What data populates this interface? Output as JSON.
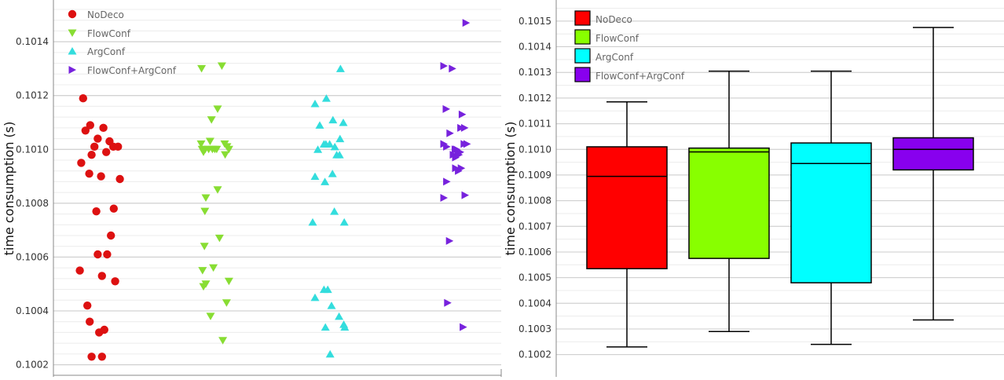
{
  "chart_data": [
    {
      "type": "scatter",
      "ylabel": "time consumption (s)",
      "ylim": [
        0.10019,
        0.10152
      ],
      "y_ticks": [
        "0.1002",
        "0.1004",
        "0.1006",
        "0.1008",
        "0.1010",
        "0.1012",
        "0.1014"
      ],
      "legend": [
        "NoDeco",
        "FlowConf",
        "ArgConf",
        "FlowConf+ArgConf"
      ],
      "series": [
        {
          "name": "NoDeco",
          "marker": "circle",
          "color": "#dd1111",
          "x_center": 0,
          "points": [
            [
              -0.07,
              0.10119
            ],
            [
              -0.02,
              0.10107
            ],
            [
              0.08,
              0.10109
            ],
            [
              0.36,
              0.10108
            ],
            [
              0.49,
              0.10103
            ],
            [
              0.57,
              0.10101
            ],
            [
              0.67,
              0.10101
            ],
            [
              0.24,
              0.10104
            ],
            [
              0.17,
              0.10101
            ],
            [
              0.11,
              0.10098
            ],
            [
              0.42,
              0.10099
            ],
            [
              -0.11,
              0.10095
            ],
            [
              0.06,
              0.10091
            ],
            [
              0.31,
              0.1009
            ],
            [
              0.71,
              0.10089
            ],
            [
              0.21,
              0.10077
            ],
            [
              0.58,
              0.10078
            ],
            [
              0.52,
              0.10068
            ],
            [
              0.24,
              0.10061
            ],
            [
              0.44,
              0.10061
            ],
            [
              0.33,
              0.10053
            ],
            [
              0.61,
              0.10051
            ],
            [
              -0.14,
              0.10055
            ],
            [
              0.02,
              0.10042
            ],
            [
              0.07,
              0.10036
            ],
            [
              0.27,
              0.10032
            ],
            [
              0.38,
              0.10033
            ],
            [
              0.11,
              0.10023
            ],
            [
              0.33,
              0.10023
            ]
          ]
        },
        {
          "name": "FlowConf",
          "marker": "triangle-down",
          "color": "#88dd33",
          "x_center": 1,
          "points": [
            [
              -0.14,
              0.1013
            ],
            [
              0.29,
              0.10131
            ],
            [
              0.2,
              0.10115
            ],
            [
              0.07,
              0.10111
            ],
            [
              -0.15,
              0.10102
            ],
            [
              0.04,
              0.10103
            ],
            [
              -0.13,
              0.101
            ],
            [
              -0.06,
              0.101
            ],
            [
              -0.1,
              0.10099
            ],
            [
              0.01,
              0.101
            ],
            [
              0.09,
              0.101
            ],
            [
              0.14,
              0.101
            ],
            [
              0.18,
              0.101
            ],
            [
              0.35,
              0.10102
            ],
            [
              0.4,
              0.10101
            ],
            [
              0.44,
              0.101
            ],
            [
              0.36,
              0.10098
            ],
            [
              0.2,
              0.10085
            ],
            [
              -0.05,
              0.10082
            ],
            [
              -0.07,
              0.10077
            ],
            [
              0.24,
              0.10067
            ],
            [
              -0.08,
              0.10064
            ],
            [
              0.11,
              0.10056
            ],
            [
              0.44,
              0.10051
            ],
            [
              -0.12,
              0.10055
            ],
            [
              -0.05,
              0.1005
            ],
            [
              -0.1,
              0.10049
            ],
            [
              0.39,
              0.10043
            ],
            [
              0.05,
              0.10038
            ],
            [
              0.31,
              0.10029
            ]
          ]
        },
        {
          "name": "ArgConf",
          "marker": "triangle-up",
          "color": "#33dddd",
          "x_center": 2,
          "points": [
            [
              0.39,
              0.1013
            ],
            [
              -0.15,
              0.10117
            ],
            [
              0.09,
              0.10119
            ],
            [
              -0.05,
              0.10109
            ],
            [
              0.23,
              0.10111
            ],
            [
              0.45,
              0.1011
            ],
            [
              0.38,
              0.10104
            ],
            [
              0.04,
              0.10102
            ],
            [
              0.08,
              0.10102
            ],
            [
              0.16,
              0.10102
            ],
            [
              0.27,
              0.10101
            ],
            [
              0.31,
              0.10098
            ],
            [
              -0.09,
              0.101
            ],
            [
              0.37,
              0.10098
            ],
            [
              -0.15,
              0.1009
            ],
            [
              0.22,
              0.10091
            ],
            [
              0.06,
              0.10088
            ],
            [
              0.26,
              0.10077
            ],
            [
              -0.2,
              0.10073
            ],
            [
              0.47,
              0.10073
            ],
            [
              -0.15,
              0.10045
            ],
            [
              0.04,
              0.10048
            ],
            [
              0.12,
              0.10048
            ],
            [
              0.2,
              0.10042
            ],
            [
              0.36,
              0.10038
            ],
            [
              0.46,
              0.10035
            ],
            [
              0.48,
              0.10034
            ],
            [
              0.07,
              0.10034
            ],
            [
              0.17,
              0.10024
            ]
          ]
        },
        {
          "name": "FlowConf+ArgConf",
          "marker": "triangle-right",
          "color": "#7722dd",
          "x_center": 3,
          "points": [
            [
              0.72,
              0.10147
            ],
            [
              0.25,
              0.10131
            ],
            [
              0.43,
              0.1013
            ],
            [
              0.3,
              0.10115
            ],
            [
              0.64,
              0.10113
            ],
            [
              0.38,
              0.10106
            ],
            [
              0.61,
              0.10108
            ],
            [
              0.69,
              0.10108
            ],
            [
              0.25,
              0.10102
            ],
            [
              0.31,
              0.10101
            ],
            [
              0.49,
              0.101
            ],
            [
              0.52,
              0.101
            ],
            [
              0.55,
              0.10099
            ],
            [
              0.6,
              0.10099
            ],
            [
              0.45,
              0.10098
            ],
            [
              0.5,
              0.10097
            ],
            [
              0.57,
              0.10098
            ],
            [
              0.68,
              0.10102
            ],
            [
              0.74,
              0.10102
            ],
            [
              0.5,
              0.10093
            ],
            [
              0.56,
              0.10092
            ],
            [
              0.62,
              0.10093
            ],
            [
              0.31,
              0.10088
            ],
            [
              0.25,
              0.10082
            ],
            [
              0.7,
              0.10083
            ],
            [
              0.37,
              0.10066
            ],
            [
              0.33,
              0.10043
            ],
            [
              0.66,
              0.10034
            ]
          ]
        }
      ]
    },
    {
      "type": "box",
      "ylabel": "time consumption (s)",
      "ylim": [
        0.10015,
        0.10157
      ],
      "y_ticks": [
        "0.1002",
        "0.1003",
        "0.1004",
        "0.1005",
        "0.1006",
        "0.1007",
        "0.1008",
        "0.1009",
        "0.1010",
        "0.1011",
        "0.1012",
        "0.1013",
        "0.1014",
        "0.1015"
      ],
      "categories": [
        "NoDeco",
        "FlowConf",
        "ArgConf",
        "FlowConf+ArgConf"
      ],
      "colors": [
        "#ff0000",
        "#88ff00",
        "#00ffff",
        "#8800ee"
      ],
      "boxes": [
        {
          "name": "NoDeco",
          "min": 0.10023,
          "q1": 0.100535,
          "median": 0.100895,
          "q3": 0.10101,
          "max": 0.101185
        },
        {
          "name": "FlowConf",
          "min": 0.10029,
          "q1": 0.100575,
          "median": 0.10099,
          "q3": 0.101005,
          "max": 0.101305
        },
        {
          "name": "ArgConf",
          "min": 0.10024,
          "q1": 0.10048,
          "median": 0.100945,
          "q3": 0.101025,
          "max": 0.101305
        },
        {
          "name": "FlowConf+ArgConf",
          "min": 0.100335,
          "q1": 0.10092,
          "median": 0.101,
          "q3": 0.101045,
          "max": 0.101475
        }
      ]
    }
  ]
}
